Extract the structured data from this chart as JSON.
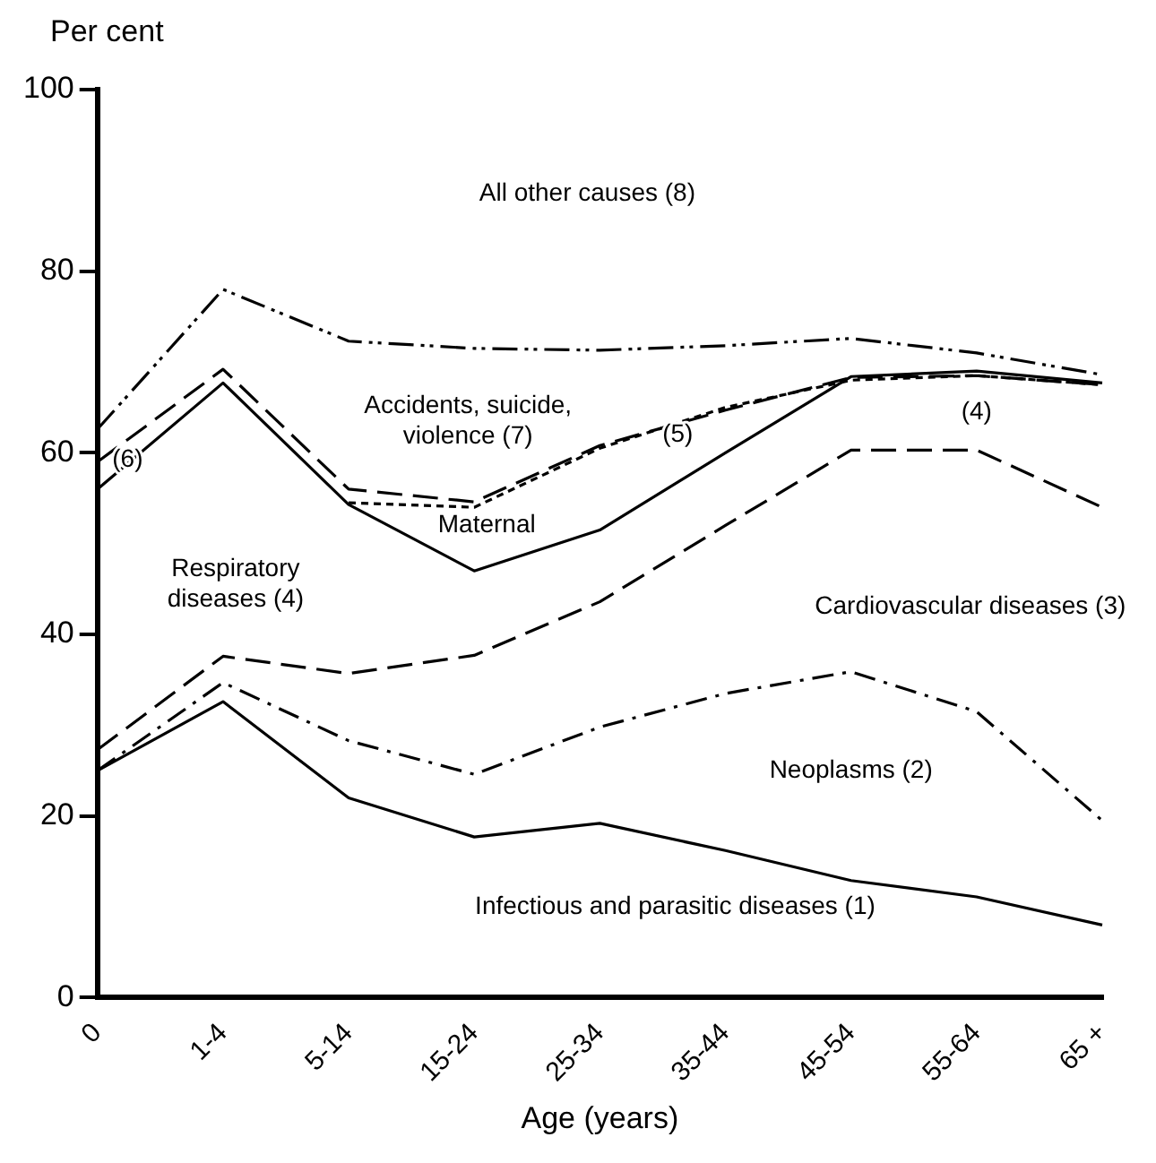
{
  "chart_data": {
    "type": "line",
    "xlabel": "Age (years)",
    "ylabel": "Per cent",
    "categories": [
      "0",
      "1-4",
      "5-14",
      "15-24",
      "25-34",
      "35-44",
      "45-54",
      "55-64",
      "65 +"
    ],
    "series": [
      {
        "color": "#000000",
        "line_style": "solid",
        "values": [
          25,
          32.6,
          22,
          17.7,
          19.2,
          16.2,
          12.9,
          11.1,
          8
        ]
      },
      {
        "color": "#000000",
        "line_style": "dashdot",
        "values": [
          25,
          34.7,
          28.3,
          24.6,
          29.8,
          33.5,
          35.9,
          31.5,
          19.5
        ]
      },
      {
        "color": "#000000",
        "line_style": "dashed",
        "values": [
          27.3,
          37.6,
          35.7,
          37.7,
          43.6,
          52,
          60.3,
          60.3,
          54
        ]
      },
      {
        "color": "#000000",
        "line_style": "solid",
        "values": [
          56,
          67.7,
          54.3,
          47,
          51.5,
          60,
          68.4,
          69,
          67.7
        ]
      },
      {
        "color": "#000000",
        "line_style": "dotted",
        "values": [
          null,
          null,
          54.5,
          54,
          60.5,
          65,
          68,
          68.5,
          67.5
        ]
      },
      {
        "color": "#000000",
        "line_style": "dashed",
        "values": [
          59,
          69.2,
          56,
          54.6,
          60.8,
          64.7,
          68.3,
          68.5,
          67.5
        ]
      },
      {
        "color": "#000000",
        "line_style": "dashdotdot",
        "values": [
          62.6,
          78,
          72.3,
          71.5,
          71.3,
          71.8,
          72.6,
          71,
          68.6
        ]
      }
    ],
    "ylim": [
      0,
      100
    ],
    "yticks": [
      0,
      20,
      40,
      60,
      80,
      100
    ],
    "grid": false,
    "legend": false,
    "marker": "none",
    "annotations": [
      "All other causes (8)",
      "Accidents, suicide, violence (7)",
      "(6)",
      "(5)",
      "(4)",
      "Maternal",
      "Respiratory diseases (4)",
      "Cardiovascular diseases (3)",
      "Neoplasms (2)",
      "Infectious and parasitic diseases (1)"
    ]
  }
}
